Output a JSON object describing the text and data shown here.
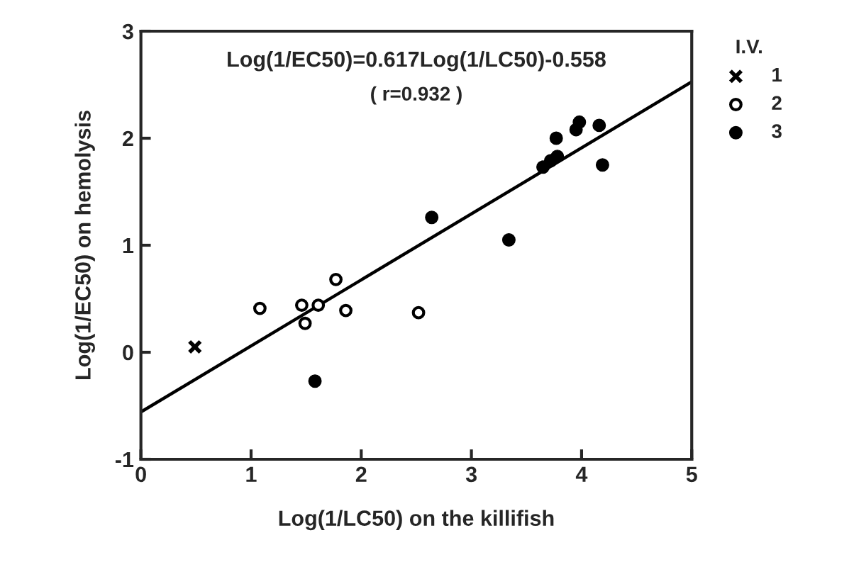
{
  "chart_data": {
    "type": "scatter",
    "xlabel": "Log(1/LC50) on the killifish",
    "ylabel": "Log(1/EC50) on hemolysis",
    "legend_title": "I.V.",
    "annotations": [
      "Log(1/EC50)=0.617Log(1/LC50)-0.558",
      "( r=0.932 )"
    ],
    "series": [
      {
        "name": "1",
        "color": "#000000",
        "marker": "cross",
        "x": [
          0.49
        ],
        "values": [
          0.05
        ]
      },
      {
        "name": "2",
        "color": "#000000",
        "marker": "circle_open",
        "x": [
          1.08,
          1.46,
          1.49,
          1.61,
          1.77,
          1.86,
          2.52
        ],
        "values": [
          0.41,
          0.44,
          0.27,
          0.44,
          0.68,
          0.39,
          0.37
        ]
      },
      {
        "name": "3",
        "color": "#000000",
        "marker": "circle",
        "x": [
          1.58,
          2.64,
          3.34,
          3.65,
          3.72,
          3.78,
          3.77,
          3.95,
          3.98,
          4.16,
          4.19
        ],
        "values": [
          -0.27,
          1.26,
          1.05,
          1.73,
          1.79,
          1.83,
          2.0,
          2.08,
          2.15,
          2.12,
          1.75
        ]
      },
      {
        "type": "line",
        "color": "#000000",
        "marker": "none",
        "line_style": "solid",
        "x": [
          0,
          5
        ],
        "values": [
          -0.558,
          2.527
        ]
      }
    ],
    "xlim": [
      0,
      5
    ],
    "ylim": [
      -1,
      3
    ],
    "xticks": [
      0,
      1,
      2,
      3,
      4,
      5
    ],
    "yticks": [
      -1,
      0,
      1,
      2,
      3
    ],
    "grid": false,
    "legend": "top right"
  }
}
